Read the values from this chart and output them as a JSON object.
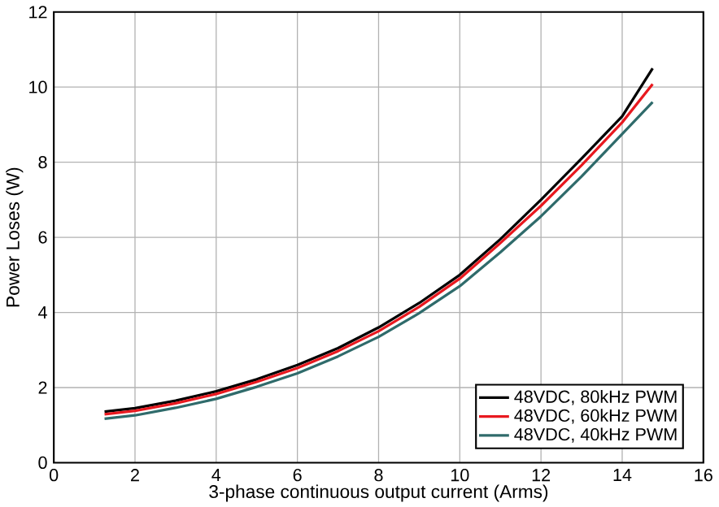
{
  "chart_data": {
    "type": "line",
    "xlabel": "3-phase continuous output current (Arms)",
    "ylabel": "Power Loses (W)",
    "xlim": [
      0,
      16
    ],
    "xticks": [
      0,
      2,
      4,
      6,
      8,
      10,
      12,
      14,
      16
    ],
    "ylim": [
      0,
      12
    ],
    "yticks": [
      0,
      2,
      4,
      6,
      8,
      10,
      12
    ],
    "grid": true,
    "legend": "bottom right",
    "series": [
      {
        "name": "48VDC, 80kHz PWM",
        "color": "#000000",
        "x": [
          1.25,
          2,
          3,
          4,
          5,
          6,
          7,
          8,
          9,
          10,
          11,
          12,
          13,
          14,
          14.75
        ],
        "values": [
          1.36,
          1.45,
          1.65,
          1.9,
          2.22,
          2.6,
          3.05,
          3.6,
          4.25,
          5.0,
          5.95,
          7.0,
          8.1,
          9.22,
          10.5
        ]
      },
      {
        "name": "48VDC, 60kHz PWM",
        "color": "#e8191f",
        "x": [
          1.25,
          2,
          3,
          4,
          5,
          6,
          7,
          8,
          9,
          10,
          11,
          12,
          13,
          14,
          14.75
        ],
        "values": [
          1.29,
          1.38,
          1.58,
          1.83,
          2.15,
          2.52,
          2.97,
          3.5,
          4.15,
          4.9,
          5.85,
          6.84,
          7.92,
          9.06,
          10.08
        ]
      },
      {
        "name": "48VDC, 40kHz PWM",
        "color": "#2f6b6b",
        "x": [
          1.25,
          2,
          3,
          4,
          5,
          6,
          7,
          8,
          9,
          10,
          11,
          12,
          13,
          14,
          14.75
        ],
        "values": [
          1.17,
          1.26,
          1.46,
          1.7,
          2.02,
          2.38,
          2.83,
          3.35,
          3.98,
          4.7,
          5.6,
          6.56,
          7.62,
          8.75,
          9.6
        ]
      }
    ]
  }
}
